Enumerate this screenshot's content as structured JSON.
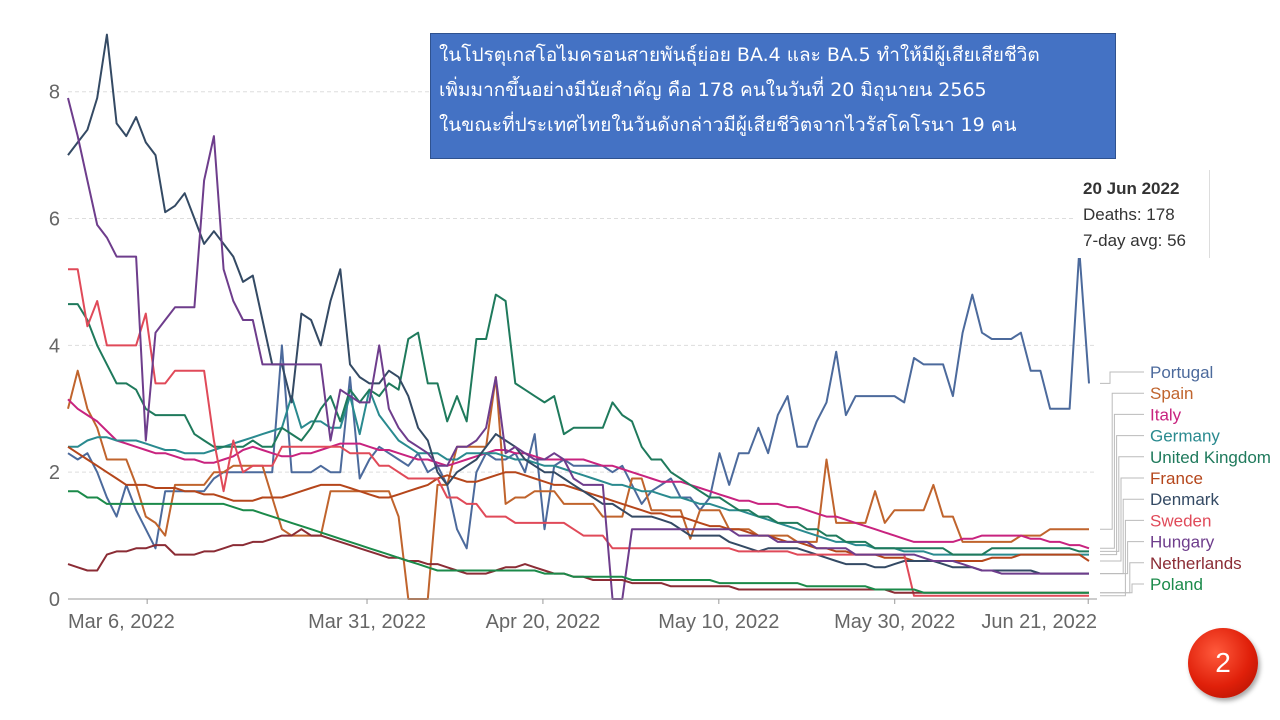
{
  "annotation": {
    "lines": [
      "ในโปรตุเกสโอไมครอนสายพันธุ์ย่อย BA.4 และ BA.5 ทำให้มีผู้เสียเสียชีวิต",
      "เพิ่มมากขึ้นอย่างมีนัยสำคัญ  คือ 178 คนในวันที่ 20 มิถุนายน 2565",
      "ในขณะที่ประเทศไทยในวันดังกล่าวมีผู้เสียชีวิตจากไวรัสโคโรนา 19 คน"
    ]
  },
  "tooltip": {
    "date": "20 Jun 2022",
    "deaths": "Deaths: 178",
    "avg": "7-day avg: 56"
  },
  "slide_number": "2",
  "chart_data": {
    "type": "line",
    "x_start": "2022-02-25",
    "x_end": "2022-06-22",
    "x_ticks": [
      "Mar 6, 2022",
      "Mar 31, 2022",
      "Apr 20, 2022",
      "May 10, 2022",
      "May 30, 2022",
      "Jun 21, 2022"
    ],
    "x_tick_dates": [
      "2022-03-06",
      "2022-03-31",
      "2022-04-20",
      "2022-05-10",
      "2022-05-30",
      "2022-06-21"
    ],
    "y_ticks": [
      0,
      2,
      4,
      6,
      8
    ],
    "ylim": [
      0,
      8.5
    ],
    "grid": true,
    "legend_placement": "right",
    "series": [
      {
        "name": "Portugal",
        "color": "#4c6a9c",
        "values": [
          2.3,
          2.2,
          2.3,
          2.0,
          1.6,
          1.3,
          1.8,
          1.4,
          1.1,
          0.8,
          1.7,
          1.7,
          1.7,
          1.7,
          1.7,
          1.9,
          2.0,
          2.0,
          2.0,
          2.0,
          2.0,
          2.0,
          4.0,
          2.0,
          2.0,
          2.0,
          2.1,
          2.0,
          2.0,
          3.5,
          1.9,
          2.2,
          2.4,
          2.3,
          2.2,
          2.1,
          2.3,
          2.0,
          2.1,
          1.8,
          1.1,
          0.8,
          2.0,
          2.3,
          2.2,
          2.2,
          2.3,
          2.0,
          2.6,
          1.1,
          2.1,
          2.2,
          2.1,
          2.1,
          2.1,
          2.1,
          2.0,
          2.1,
          1.8,
          1.5,
          1.7,
          1.8,
          1.9,
          1.6,
          1.6,
          1.4,
          1.6,
          2.3,
          1.8,
          2.3,
          2.3,
          2.7,
          2.3,
          2.9,
          3.2,
          2.4,
          2.4,
          2.8,
          3.1,
          3.9,
          2.9,
          3.2,
          3.2,
          3.2,
          3.2,
          3.2,
          3.1,
          3.8,
          3.7,
          3.7,
          3.7,
          3.2,
          4.2,
          4.8,
          4.2,
          4.1,
          4.1,
          4.1,
          4.2,
          3.6,
          3.6,
          3.0,
          3.0,
          3.0,
          5.5,
          3.4
        ]
      },
      {
        "name": "Spain",
        "color": "#c0642d",
        "values": [
          3.0,
          3.6,
          3.0,
          2.7,
          2.2,
          2.2,
          2.2,
          1.8,
          1.3,
          1.2,
          1.0,
          1.8,
          1.8,
          1.8,
          1.8,
          2.0,
          2.0,
          2.1,
          2.1,
          2.1,
          2.1,
          1.6,
          1.1,
          1.0,
          1.0,
          1.0,
          1.0,
          1.7,
          1.7,
          1.7,
          1.7,
          1.7,
          1.7,
          1.7,
          1.3,
          0.0,
          0.0,
          0.0,
          1.8,
          1.8,
          2.4,
          2.4,
          2.4,
          2.4,
          3.5,
          1.5,
          1.6,
          1.6,
          1.7,
          1.7,
          1.7,
          1.5,
          1.5,
          1.5,
          1.5,
          1.3,
          1.3,
          1.3,
          1.9,
          1.9,
          1.4,
          1.4,
          1.4,
          1.4,
          0.95,
          1.4,
          1.4,
          1.4,
          1.1,
          1.1,
          1.1,
          1.0,
          1.0,
          1.0,
          1.0,
          0.9,
          0.9,
          0.9,
          2.2,
          1.2,
          1.2,
          1.2,
          1.2,
          1.7,
          1.2,
          1.4,
          1.4,
          1.4,
          1.4,
          1.8,
          1.3,
          1.3,
          0.9,
          0.9,
          0.9,
          0.9,
          0.9,
          0.9,
          1.0,
          1.0,
          1.0,
          1.1,
          1.1,
          1.1,
          1.1,
          1.1
        ]
      },
      {
        "name": "Italy",
        "color": "#c8237f",
        "values": [
          3.15,
          3.0,
          2.9,
          2.8,
          2.65,
          2.5,
          2.45,
          2.4,
          2.35,
          2.3,
          2.3,
          2.25,
          2.2,
          2.2,
          2.15,
          2.15,
          2.2,
          2.25,
          2.35,
          2.4,
          2.35,
          2.3,
          2.25,
          2.25,
          2.3,
          2.3,
          2.35,
          2.4,
          2.45,
          2.45,
          2.45,
          2.4,
          2.35,
          2.35,
          2.3,
          2.25,
          2.2,
          2.2,
          2.15,
          2.1,
          2.15,
          2.2,
          2.25,
          2.3,
          2.35,
          2.35,
          2.3,
          2.3,
          2.25,
          2.2,
          2.2,
          2.2,
          2.2,
          2.2,
          2.15,
          2.1,
          2.1,
          2.05,
          2.0,
          1.95,
          1.9,
          1.85,
          1.85,
          1.85,
          1.8,
          1.75,
          1.7,
          1.65,
          1.6,
          1.55,
          1.55,
          1.5,
          1.5,
          1.5,
          1.45,
          1.45,
          1.4,
          1.35,
          1.3,
          1.3,
          1.25,
          1.2,
          1.15,
          1.1,
          1.05,
          1.0,
          0.95,
          0.9,
          0.9,
          0.9,
          0.9,
          0.9,
          0.95,
          0.95,
          1.0,
          1.0,
          1.0,
          1.0,
          1.0,
          0.95,
          0.95,
          0.9,
          0.9,
          0.85,
          0.85,
          0.8
        ]
      },
      {
        "name": "Germany",
        "color": "#2a8a8f",
        "values": [
          2.4,
          2.4,
          2.5,
          2.55,
          2.55,
          2.5,
          2.5,
          2.5,
          2.45,
          2.4,
          2.35,
          2.35,
          2.3,
          2.3,
          2.3,
          2.35,
          2.4,
          2.45,
          2.5,
          2.55,
          2.6,
          2.65,
          2.7,
          3.2,
          2.7,
          2.8,
          2.8,
          2.7,
          2.7,
          3.2,
          2.6,
          3.3,
          2.9,
          2.7,
          2.5,
          2.4,
          2.3,
          2.3,
          2.3,
          2.2,
          2.2,
          2.3,
          2.3,
          2.3,
          2.3,
          2.25,
          2.2,
          2.2,
          2.15,
          2.1,
          2.1,
          2.05,
          2.0,
          1.95,
          1.9,
          1.85,
          1.8,
          1.8,
          1.75,
          1.7,
          1.7,
          1.65,
          1.6,
          1.6,
          1.55,
          1.5,
          1.5,
          1.45,
          1.4,
          1.4,
          1.35,
          1.3,
          1.25,
          1.2,
          1.15,
          1.1,
          1.05,
          1.0,
          0.95,
          0.9,
          0.9,
          0.85,
          0.85,
          0.8,
          0.8,
          0.8,
          0.75,
          0.75,
          0.75,
          0.7,
          0.7,
          0.7,
          0.7,
          0.7,
          0.7,
          0.7,
          0.7,
          0.7,
          0.7,
          0.7,
          0.7,
          0.7,
          0.7,
          0.7,
          0.7,
          0.7
        ]
      },
      {
        "name": "United Kingdom",
        "color": "#1f7a5c",
        "values": [
          4.65,
          4.65,
          4.4,
          4.0,
          3.7,
          3.4,
          3.4,
          3.3,
          3.0,
          2.9,
          2.9,
          2.9,
          2.9,
          2.6,
          2.5,
          2.4,
          2.4,
          2.4,
          2.4,
          2.5,
          2.4,
          2.4,
          2.7,
          2.6,
          2.5,
          2.7,
          3.0,
          3.2,
          2.8,
          3.3,
          3.1,
          3.3,
          3.2,
          3.4,
          3.3,
          4.1,
          4.2,
          3.4,
          3.4,
          2.8,
          3.2,
          2.8,
          4.1,
          4.1,
          4.8,
          4.7,
          3.4,
          3.3,
          3.2,
          3.1,
          3.2,
          2.6,
          2.7,
          2.7,
          2.7,
          2.7,
          3.1,
          2.9,
          2.8,
          2.4,
          2.2,
          2.2,
          2.0,
          1.9,
          1.8,
          1.7,
          1.6,
          1.6,
          1.5,
          1.4,
          1.4,
          1.3,
          1.3,
          1.2,
          1.2,
          1.2,
          1.1,
          1.1,
          1.0,
          1.0,
          0.9,
          0.9,
          0.9,
          0.8,
          0.8,
          0.8,
          0.8,
          0.8,
          0.8,
          0.8,
          0.8,
          0.7,
          0.7,
          0.7,
          0.7,
          0.8,
          0.8,
          0.8,
          0.8,
          0.8,
          0.8,
          0.8,
          0.8,
          0.8,
          0.75,
          0.75
        ]
      },
      {
        "name": "France",
        "color": "#b5461b",
        "values": [
          2.4,
          2.3,
          2.2,
          2.1,
          2.0,
          1.9,
          1.8,
          1.8,
          1.8,
          1.75,
          1.75,
          1.75,
          1.7,
          1.7,
          1.65,
          1.65,
          1.6,
          1.55,
          1.55,
          1.55,
          1.6,
          1.6,
          1.6,
          1.65,
          1.7,
          1.75,
          1.8,
          1.8,
          1.8,
          1.75,
          1.7,
          1.65,
          1.6,
          1.6,
          1.65,
          1.7,
          1.75,
          1.8,
          1.9,
          1.95,
          1.9,
          1.85,
          1.85,
          1.9,
          1.95,
          2.0,
          2.0,
          1.95,
          1.9,
          1.85,
          1.8,
          1.8,
          1.75,
          1.7,
          1.65,
          1.6,
          1.55,
          1.5,
          1.45,
          1.4,
          1.35,
          1.35,
          1.3,
          1.3,
          1.25,
          1.2,
          1.15,
          1.15,
          1.1,
          1.1,
          1.05,
          1.0,
          1.0,
          0.95,
          0.9,
          0.9,
          0.85,
          0.8,
          0.8,
          0.75,
          0.75,
          0.7,
          0.7,
          0.7,
          0.65,
          0.65,
          0.65,
          0.6,
          0.6,
          0.6,
          0.6,
          0.6,
          0.6,
          0.6,
          0.6,
          0.65,
          0.65,
          0.65,
          0.7,
          0.7,
          0.7,
          0.7,
          0.7,
          0.7,
          0.7,
          0.6
        ]
      },
      {
        "name": "Denmark",
        "color": "#344a64",
        "values": [
          7.0,
          7.2,
          7.4,
          7.9,
          8.9,
          7.5,
          7.3,
          7.6,
          7.2,
          7.0,
          6.1,
          6.2,
          6.4,
          6.0,
          5.6,
          5.8,
          5.6,
          5.4,
          5.0,
          5.1,
          4.4,
          3.7,
          3.7,
          3.1,
          4.5,
          4.4,
          4.0,
          4.7,
          5.2,
          3.7,
          3.5,
          3.4,
          3.4,
          3.6,
          3.5,
          3.2,
          2.7,
          2.5,
          2.0,
          1.8,
          2.0,
          2.1,
          2.2,
          2.4,
          2.6,
          2.5,
          2.4,
          2.2,
          2.1,
          2.0,
          2.0,
          1.9,
          1.8,
          1.7,
          1.6,
          1.5,
          1.5,
          1.4,
          1.3,
          1.3,
          1.3,
          1.25,
          1.2,
          1.1,
          1.0,
          1.0,
          1.0,
          1.0,
          0.9,
          0.85,
          0.8,
          0.75,
          0.8,
          0.8,
          0.8,
          0.8,
          0.75,
          0.7,
          0.65,
          0.6,
          0.55,
          0.55,
          0.55,
          0.5,
          0.5,
          0.55,
          0.6,
          0.6,
          0.6,
          0.6,
          0.55,
          0.5,
          0.5,
          0.5,
          0.45,
          0.45,
          0.45,
          0.45,
          0.45,
          0.45,
          0.4,
          0.4,
          0.4,
          0.4,
          0.4,
          0.4
        ]
      },
      {
        "name": "Sweden",
        "color": "#e04a59",
        "values": [
          5.2,
          5.2,
          4.3,
          4.7,
          4.0,
          4.0,
          4.0,
          4.0,
          4.5,
          3.4,
          3.4,
          3.6,
          3.6,
          3.6,
          3.6,
          2.5,
          1.7,
          2.5,
          2.0,
          2.1,
          2.1,
          2.1,
          2.4,
          2.4,
          2.4,
          2.4,
          2.4,
          2.4,
          2.4,
          2.3,
          2.3,
          2.3,
          2.1,
          2.1,
          2.0,
          1.9,
          1.9,
          1.9,
          1.9,
          1.6,
          1.6,
          1.5,
          1.5,
          1.3,
          1.3,
          1.3,
          1.2,
          1.2,
          1.2,
          1.2,
          1.2,
          1.2,
          1.1,
          1.0,
          1.0,
          1.0,
          0.8,
          0.8,
          0.8,
          0.8,
          0.8,
          0.8,
          0.8,
          0.8,
          0.8,
          0.8,
          0.8,
          0.8,
          0.8,
          0.75,
          0.75,
          0.75,
          0.75,
          0.75,
          0.75,
          0.7,
          0.7,
          0.7,
          0.7,
          0.7,
          0.7,
          0.7,
          0.7,
          0.7,
          0.7,
          0.7,
          0.7,
          0.05,
          0.05,
          0.05,
          0.05,
          0.05,
          0.05,
          0.05,
          0.05,
          0.05,
          0.05,
          0.05,
          0.05,
          0.05,
          0.05,
          0.05,
          0.05,
          0.05,
          0.05,
          0.05
        ]
      },
      {
        "name": "Hungary",
        "color": "#6e3d8c",
        "values": [
          7.9,
          7.3,
          6.6,
          5.9,
          5.7,
          5.4,
          5.4,
          5.4,
          2.5,
          4.2,
          4.4,
          4.6,
          4.6,
          4.6,
          6.6,
          7.3,
          5.2,
          4.7,
          4.4,
          4.4,
          3.7,
          3.7,
          3.7,
          3.7,
          3.7,
          3.7,
          3.7,
          2.5,
          3.3,
          3.2,
          3.1,
          3.1,
          4.0,
          3.0,
          2.7,
          2.5,
          2.4,
          2.3,
          2.1,
          2.1,
          2.4,
          2.4,
          2.5,
          2.7,
          3.5,
          2.3,
          2.4,
          2.3,
          2.2,
          2.2,
          2.3,
          2.2,
          1.9,
          1.8,
          1.8,
          1.8,
          0.0,
          0.0,
          1.1,
          1.1,
          1.1,
          1.1,
          1.1,
          1.1,
          1.1,
          1.1,
          1.1,
          1.1,
          1.1,
          1.0,
          1.0,
          1.0,
          1.0,
          0.9,
          0.9,
          0.9,
          0.9,
          0.8,
          0.8,
          0.8,
          0.8,
          0.7,
          0.7,
          0.7,
          0.7,
          0.7,
          0.7,
          0.7,
          0.65,
          0.6,
          0.6,
          0.6,
          0.55,
          0.5,
          0.45,
          0.45,
          0.4,
          0.4,
          0.4,
          0.4,
          0.4,
          0.4,
          0.4,
          0.4,
          0.4,
          0.4
        ]
      },
      {
        "name": "Netherlands",
        "color": "#8b2c35",
        "values": [
          0.55,
          0.5,
          0.45,
          0.45,
          0.7,
          0.75,
          0.75,
          0.8,
          0.8,
          0.85,
          0.85,
          0.7,
          0.7,
          0.7,
          0.75,
          0.75,
          0.8,
          0.85,
          0.85,
          0.9,
          0.9,
          0.95,
          1.0,
          1.0,
          1.1,
          1.0,
          1.0,
          0.95,
          0.9,
          0.85,
          0.8,
          0.75,
          0.7,
          0.65,
          0.65,
          0.6,
          0.6,
          0.55,
          0.55,
          0.5,
          0.45,
          0.4,
          0.4,
          0.4,
          0.45,
          0.5,
          0.5,
          0.55,
          0.5,
          0.45,
          0.4,
          0.4,
          0.35,
          0.35,
          0.3,
          0.3,
          0.3,
          0.3,
          0.25,
          0.25,
          0.25,
          0.25,
          0.2,
          0.2,
          0.2,
          0.2,
          0.2,
          0.2,
          0.2,
          0.15,
          0.15,
          0.15,
          0.15,
          0.15,
          0.15,
          0.15,
          0.15,
          0.15,
          0.15,
          0.15,
          0.15,
          0.15,
          0.15,
          0.15,
          0.15,
          0.1,
          0.1,
          0.1,
          0.1,
          0.1,
          0.1,
          0.1,
          0.1,
          0.1,
          0.1,
          0.1,
          0.1,
          0.1,
          0.1,
          0.1,
          0.1,
          0.1,
          0.1,
          0.1,
          0.1,
          0.1
        ]
      },
      {
        "name": "Poland",
        "color": "#1b8a4a",
        "values": [
          1.7,
          1.7,
          1.6,
          1.6,
          1.5,
          1.5,
          1.5,
          1.5,
          1.5,
          1.5,
          1.5,
          1.5,
          1.5,
          1.5,
          1.5,
          1.5,
          1.5,
          1.45,
          1.4,
          1.4,
          1.35,
          1.3,
          1.25,
          1.2,
          1.15,
          1.1,
          1.05,
          1.0,
          0.95,
          0.9,
          0.85,
          0.8,
          0.75,
          0.7,
          0.65,
          0.6,
          0.55,
          0.5,
          0.45,
          0.45,
          0.45,
          0.45,
          0.45,
          0.45,
          0.45,
          0.45,
          0.45,
          0.45,
          0.45,
          0.4,
          0.4,
          0.4,
          0.35,
          0.35,
          0.35,
          0.35,
          0.35,
          0.35,
          0.3,
          0.3,
          0.3,
          0.3,
          0.3,
          0.3,
          0.3,
          0.3,
          0.3,
          0.25,
          0.25,
          0.25,
          0.25,
          0.25,
          0.25,
          0.25,
          0.25,
          0.25,
          0.2,
          0.2,
          0.2,
          0.2,
          0.2,
          0.2,
          0.2,
          0.15,
          0.15,
          0.15,
          0.15,
          0.15,
          0.1,
          0.1,
          0.1,
          0.1,
          0.1,
          0.1,
          0.1,
          0.1,
          0.1,
          0.1,
          0.1,
          0.1,
          0.1,
          0.1,
          0.1,
          0.1,
          0.1,
          0.1
        ]
      }
    ]
  }
}
